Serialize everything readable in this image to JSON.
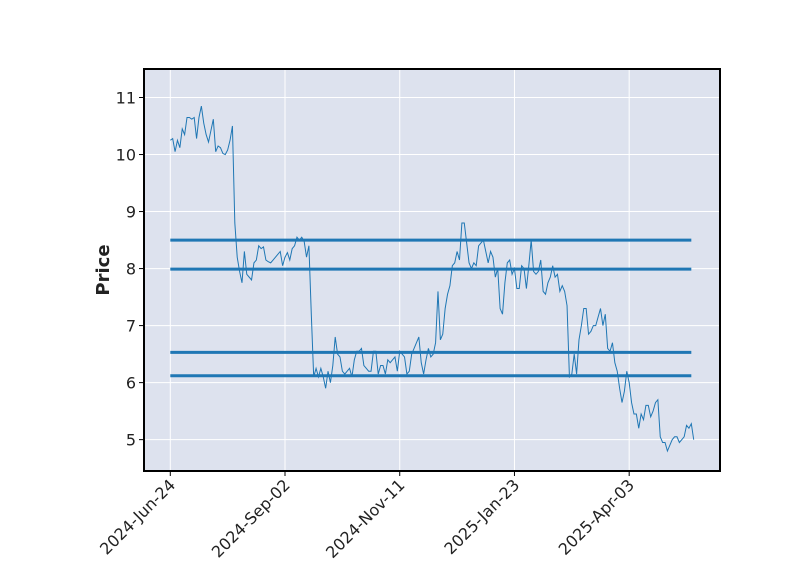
{
  "chart_data": {
    "type": "line",
    "ylabel": "Price",
    "ylim": [
      4.45,
      11.5
    ],
    "y_ticks": [
      5,
      6,
      7,
      8,
      9,
      10,
      11
    ],
    "x_tick_labels": [
      "2024-Jun-24",
      "2024-Sep-02",
      "2024-Nov-11",
      "2025-Jan-23",
      "2025-Apr-03"
    ],
    "x_tick_positions": [
      1,
      49,
      97,
      145,
      193
    ],
    "xlim": [
      -10,
      231
    ],
    "grid": true,
    "background_color": "#dde2ee",
    "line_color": "#1f77b4",
    "series": [
      {
        "values": [
          10.25,
          10.28,
          10.05,
          10.25,
          10.12,
          10.45,
          10.35,
          10.65,
          10.65,
          10.62,
          10.65,
          10.28,
          10.65,
          10.85,
          10.55,
          10.35,
          10.22,
          10.42,
          10.62,
          10.05,
          10.15,
          10.12,
          10.02,
          10.0,
          10.08,
          10.25,
          10.5,
          8.8,
          8.2,
          7.95,
          7.75,
          8.3,
          7.9,
          7.85,
          7.8,
          8.1,
          8.15,
          8.4,
          8.35,
          8.38,
          8.15,
          8.12,
          8.1,
          8.15,
          8.2,
          8.25,
          8.3,
          8.05,
          8.2,
          8.28,
          8.15,
          8.35,
          8.4,
          8.55,
          8.5,
          8.55,
          8.48,
          8.2,
          8.4,
          7.2,
          6.1,
          6.25,
          6.1,
          6.25,
          6.1,
          5.9,
          6.2,
          6.0,
          6.3,
          6.8,
          6.5,
          6.45,
          6.2,
          6.15,
          6.2,
          6.25,
          6.1,
          6.4,
          6.55,
          6.55,
          6.6,
          6.3,
          6.25,
          6.2,
          6.2,
          6.55,
          6.55,
          6.15,
          6.3,
          6.3,
          6.15,
          6.4,
          6.35,
          6.4,
          6.45,
          6.2,
          6.55,
          6.5,
          6.45,
          6.15,
          6.2,
          6.5,
          6.6,
          6.7,
          6.8,
          6.35,
          6.15,
          6.4,
          6.6,
          6.45,
          6.5,
          6.7,
          7.6,
          6.75,
          6.85,
          7.3,
          7.55,
          7.7,
          8.05,
          8.1,
          8.3,
          8.15,
          8.8,
          8.8,
          8.45,
          8.1,
          8.0,
          8.1,
          8.05,
          8.4,
          8.45,
          8.5,
          8.3,
          8.1,
          8.3,
          8.2,
          7.85,
          8.0,
          7.3,
          7.2,
          7.75,
          8.1,
          8.15,
          7.9,
          8.0,
          7.65,
          7.65,
          8.05,
          8.0,
          7.65,
          8.05,
          8.5,
          7.95,
          7.9,
          7.95,
          8.15,
          7.6,
          7.55,
          7.75,
          7.85,
          8.05,
          7.85,
          7.9,
          7.6,
          7.7,
          7.6,
          7.35,
          6.1,
          6.15,
          6.5,
          6.15,
          6.75,
          7.0,
          7.3,
          7.3,
          6.85,
          6.9,
          7.0,
          7.0,
          7.15,
          7.3,
          7.0,
          7.2,
          6.6,
          6.55,
          6.7,
          6.35,
          6.2,
          5.9,
          5.65,
          5.85,
          6.2,
          6.0,
          5.65,
          5.45,
          5.45,
          5.2,
          5.45,
          5.35,
          5.6,
          5.6,
          5.4,
          5.5,
          5.65,
          5.7,
          5.05,
          4.95,
          4.95,
          4.8,
          4.9,
          5.0,
          5.05,
          5.05,
          4.95,
          5.0,
          5.05,
          5.25,
          5.2,
          5.28,
          5.0
        ]
      }
    ],
    "horizontal_lines": [
      8.5,
      7.99,
      6.53,
      6.12
    ],
    "horizontal_line_span": [
      1,
      219
    ]
  }
}
